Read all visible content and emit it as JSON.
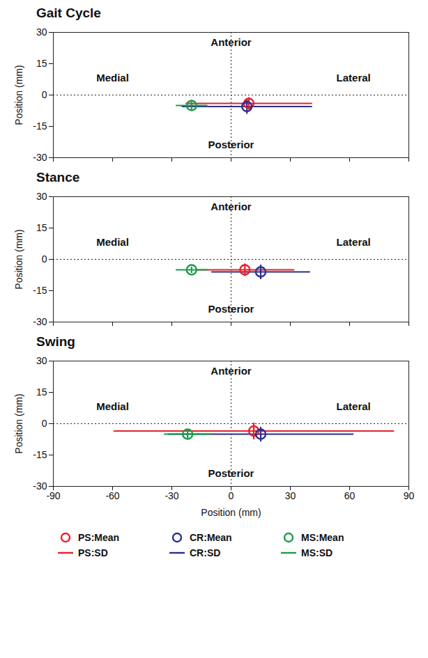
{
  "chart_data": [
    {
      "type": "scatter",
      "title": "Gait Cycle",
      "y_label": "Position (mm)",
      "xlim": [
        -90,
        90
      ],
      "xticks": [
        -90,
        -60,
        -30,
        0,
        30,
        60,
        90
      ],
      "ylim": [
        -30,
        30
      ],
      "yticks": [
        -30,
        -15,
        0,
        15,
        30
      ],
      "tick_labels": "y",
      "reference_lines": [
        {
          "axis": "x",
          "value": 0
        },
        {
          "axis": "y",
          "value": 0
        }
      ],
      "annotations": [
        {
          "text": "Anterior",
          "x": 0,
          "y": 25
        },
        {
          "text": "Posterior",
          "x": 0,
          "y": -24
        },
        {
          "text": "Medial",
          "x": -60,
          "y": 8
        },
        {
          "text": "Lateral",
          "x": 62,
          "y": 8
        }
      ],
      "series": [
        {
          "name": "PS",
          "color": "#e8202a",
          "x": [
            9
          ],
          "y": [
            -4
          ],
          "x_sd": [
            32
          ],
          "y_sd": [
            3
          ]
        },
        {
          "name": "CR",
          "color": "#2b2f8f",
          "x": [
            8
          ],
          "y": [
            -5.5
          ],
          "x_sd": [
            33
          ],
          "y_sd": [
            3.5
          ]
        },
        {
          "name": "MS",
          "color": "#1a9c4a",
          "x": [
            -20
          ],
          "y": [
            -5
          ],
          "x_sd": [
            8
          ],
          "y_sd": [
            2
          ]
        }
      ]
    },
    {
      "type": "scatter",
      "title": "Stance",
      "y_label": "Position (mm)",
      "xlim": [
        -90,
        90
      ],
      "xticks": [
        -90,
        -60,
        -30,
        0,
        30,
        60,
        90
      ],
      "ylim": [
        -30,
        30
      ],
      "yticks": [
        -30,
        -15,
        0,
        15,
        30
      ],
      "tick_labels": "y",
      "reference_lines": [
        {
          "axis": "x",
          "value": 0
        },
        {
          "axis": "y",
          "value": 0
        }
      ],
      "annotations": [
        {
          "text": "Anterior",
          "x": 0,
          "y": 25
        },
        {
          "text": "Posterior",
          "x": 0,
          "y": -24
        },
        {
          "text": "Medial",
          "x": -60,
          "y": 8
        },
        {
          "text": "Lateral",
          "x": 62,
          "y": 8
        }
      ],
      "series": [
        {
          "name": "PS",
          "color": "#e8202a",
          "x": [
            7
          ],
          "y": [
            -5
          ],
          "x_sd": [
            25
          ],
          "y_sd": [
            3
          ]
        },
        {
          "name": "CR",
          "color": "#2b2f8f",
          "x": [
            15
          ],
          "y": [
            -6
          ],
          "x_sd": [
            25
          ],
          "y_sd": [
            3.5
          ]
        },
        {
          "name": "MS",
          "color": "#1a9c4a",
          "x": [
            -20
          ],
          "y": [
            -5
          ],
          "x_sd": [
            8
          ],
          "y_sd": [
            1.5
          ]
        }
      ]
    },
    {
      "type": "scatter",
      "title": "Swing",
      "x_label": "Position (mm)",
      "y_label": "Position (mm)",
      "xlim": [
        -90,
        90
      ],
      "xticks": [
        -90,
        -60,
        -30,
        0,
        30,
        60,
        90
      ],
      "ylim": [
        -30,
        30
      ],
      "yticks": [
        -30,
        -15,
        0,
        15,
        30
      ],
      "tick_labels": true,
      "reference_lines": [
        {
          "axis": "x",
          "value": 0
        },
        {
          "axis": "y",
          "value": 0
        }
      ],
      "annotations": [
        {
          "text": "Anterior",
          "x": 0,
          "y": 25
        },
        {
          "text": "Posterior",
          "x": 0,
          "y": -24
        },
        {
          "text": "Medial",
          "x": -60,
          "y": 8
        },
        {
          "text": "Lateral",
          "x": 62,
          "y": 8
        }
      ],
      "series": [
        {
          "name": "PS",
          "color": "#e8202a",
          "x": [
            11.5
          ],
          "y": [
            -3.5
          ],
          "x_sd": [
            71
          ],
          "y_sd": [
            4
          ]
        },
        {
          "name": "CR",
          "color": "#2b2f8f",
          "x": [
            15
          ],
          "y": [
            -5
          ],
          "x_sd": [
            47
          ],
          "y_sd": [
            3.5
          ]
        },
        {
          "name": "MS",
          "color": "#1a9c4a",
          "x": [
            -22
          ],
          "y": [
            -5
          ],
          "x_sd": [
            12
          ],
          "y_sd": [
            2
          ]
        }
      ],
      "legend": "bottom",
      "legend_entries": [
        {
          "label": "PS:Mean",
          "series": "PS",
          "marker": "circle"
        },
        {
          "label": "CR:Mean",
          "series": "CR",
          "marker": "circle"
        },
        {
          "label": "MS:Mean",
          "series": "MS",
          "marker": "circle"
        },
        {
          "label": "PS:SD",
          "series": "PS",
          "line_style": "solid"
        },
        {
          "label": "CR:SD",
          "series": "CR",
          "line_style": "solid"
        },
        {
          "label": "MS:SD",
          "series": "MS",
          "line_style": "solid"
        }
      ]
    }
  ]
}
